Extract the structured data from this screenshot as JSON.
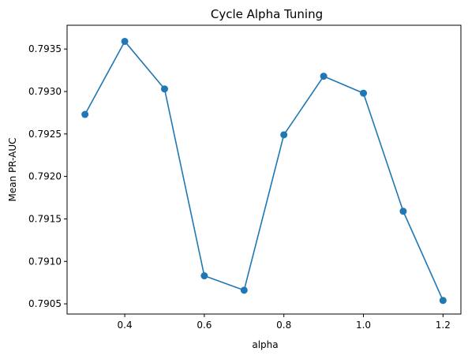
{
  "chart_data": {
    "type": "line",
    "title": "Cycle Alpha Tuning",
    "xlabel": "alpha",
    "ylabel": "Mean PR-AUC",
    "xlim": [
      0.255,
      1.245
    ],
    "ylim": [
      0.79038,
      0.79378
    ],
    "x_ticks": [
      0.4,
      0.6,
      0.8,
      1.0,
      1.2
    ],
    "x_tick_labels": [
      "0.4",
      "0.6",
      "0.8",
      "1.0",
      "1.2"
    ],
    "y_ticks": [
      0.7905,
      0.791,
      0.7915,
      0.792,
      0.7925,
      0.793,
      0.7935
    ],
    "y_tick_labels": [
      "0.7905",
      "0.7910",
      "0.7915",
      "0.7920",
      "0.7925",
      "0.7930",
      "0.7935"
    ],
    "grid": false,
    "series": [
      {
        "color": "#1f77b4",
        "marker": "circle",
        "x": [
          0.3,
          0.4,
          0.5,
          0.6,
          0.7,
          0.8,
          0.9,
          1.0,
          1.1,
          1.2
        ],
        "y": [
          0.79273,
          0.79359,
          0.79303,
          0.79083,
          0.79066,
          0.79249,
          0.79318,
          0.79298,
          0.79159,
          0.79054
        ]
      }
    ]
  }
}
